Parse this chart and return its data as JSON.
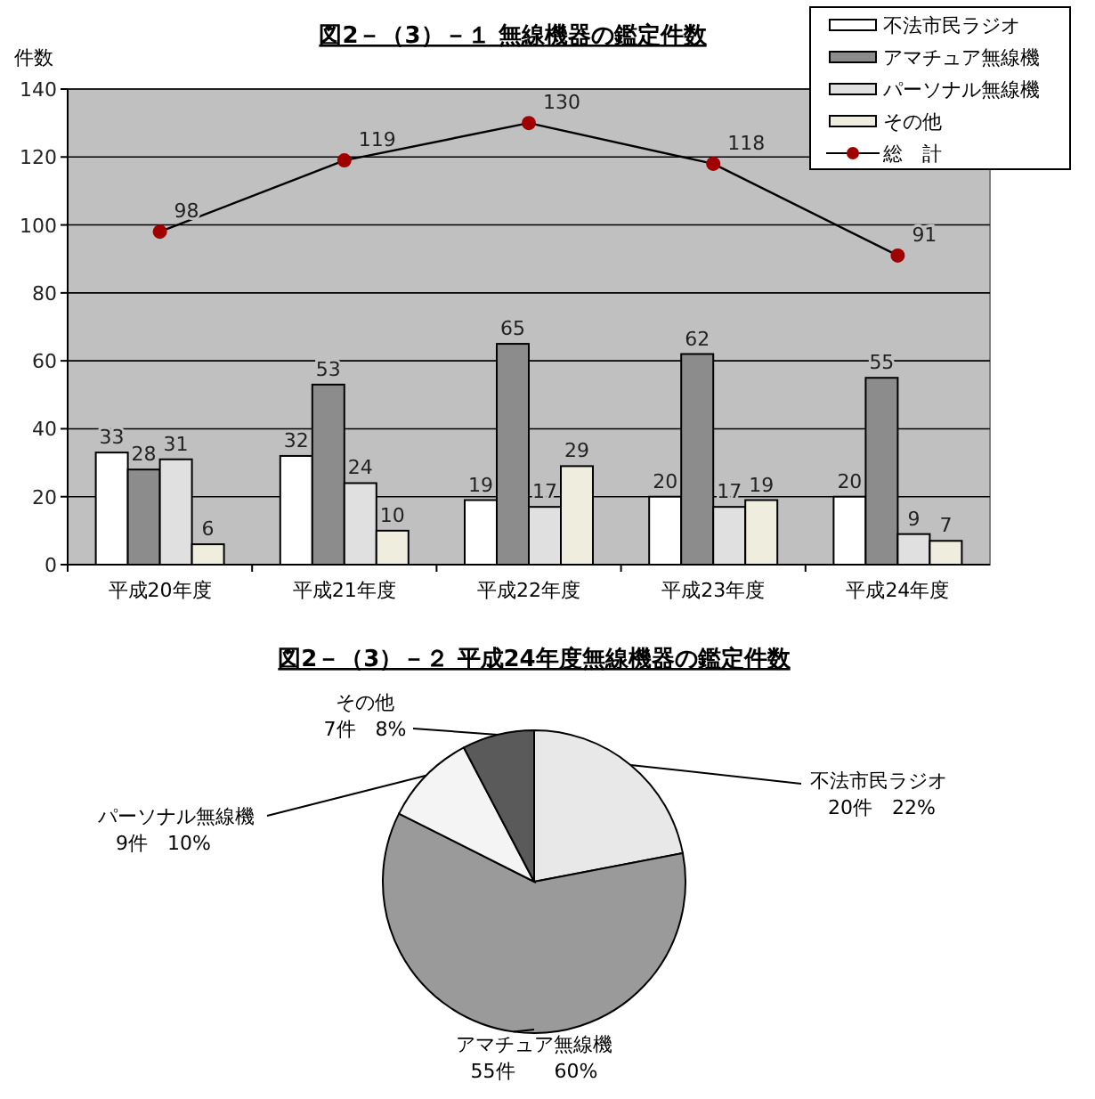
{
  "chart_data": [
    {
      "type": "bar",
      "title": "図2－（3）－１ 無線機器の鑑定件数",
      "ylabel": "件数",
      "categories": [
        "平成20年度",
        "平成21年度",
        "平成22年度",
        "平成23年度",
        "平成24年度"
      ],
      "series": [
        {
          "name": "不法市民ラジオ",
          "color": "#ffffff",
          "values": [
            33,
            32,
            19,
            20,
            20
          ]
        },
        {
          "name": "アマチュア無線機",
          "color": "#8c8c8c",
          "values": [
            28,
            53,
            65,
            62,
            55
          ]
        },
        {
          "name": "パーソナル無線機",
          "color": "#e0e0e0",
          "values": [
            31,
            24,
            17,
            17,
            9
          ]
        },
        {
          "name": "その他",
          "color": "#efeede",
          "values": [
            6,
            10,
            29,
            19,
            7
          ]
        },
        {
          "name": "総　計",
          "type": "line",
          "color": "#a00000",
          "marker": "circle",
          "values": [
            98,
            119,
            130,
            118,
            91
          ]
        }
      ],
      "ylim": [
        0,
        140
      ],
      "yticks": [
        0,
        20,
        40,
        60,
        80,
        100,
        120,
        140
      ],
      "grid": "y",
      "legend": "top right",
      "data_labels": true
    },
    {
      "type": "pie",
      "title": "図2－（3）－２ 平成24年度無線機器の鑑定件数",
      "categories": [
        "不法市民ラジオ",
        "アマチュア無線機",
        "パーソナル無線機",
        "その他"
      ],
      "values": [
        20,
        55,
        9,
        7
      ],
      "colors": [
        "#e8e8e8",
        "#9a9a9a",
        "#f4f4f4",
        "#5a5a5a"
      ],
      "value_labels": [
        "20件　22%",
        "55件　　60%",
        "9件　10%",
        "7件　8%"
      ]
    }
  ]
}
